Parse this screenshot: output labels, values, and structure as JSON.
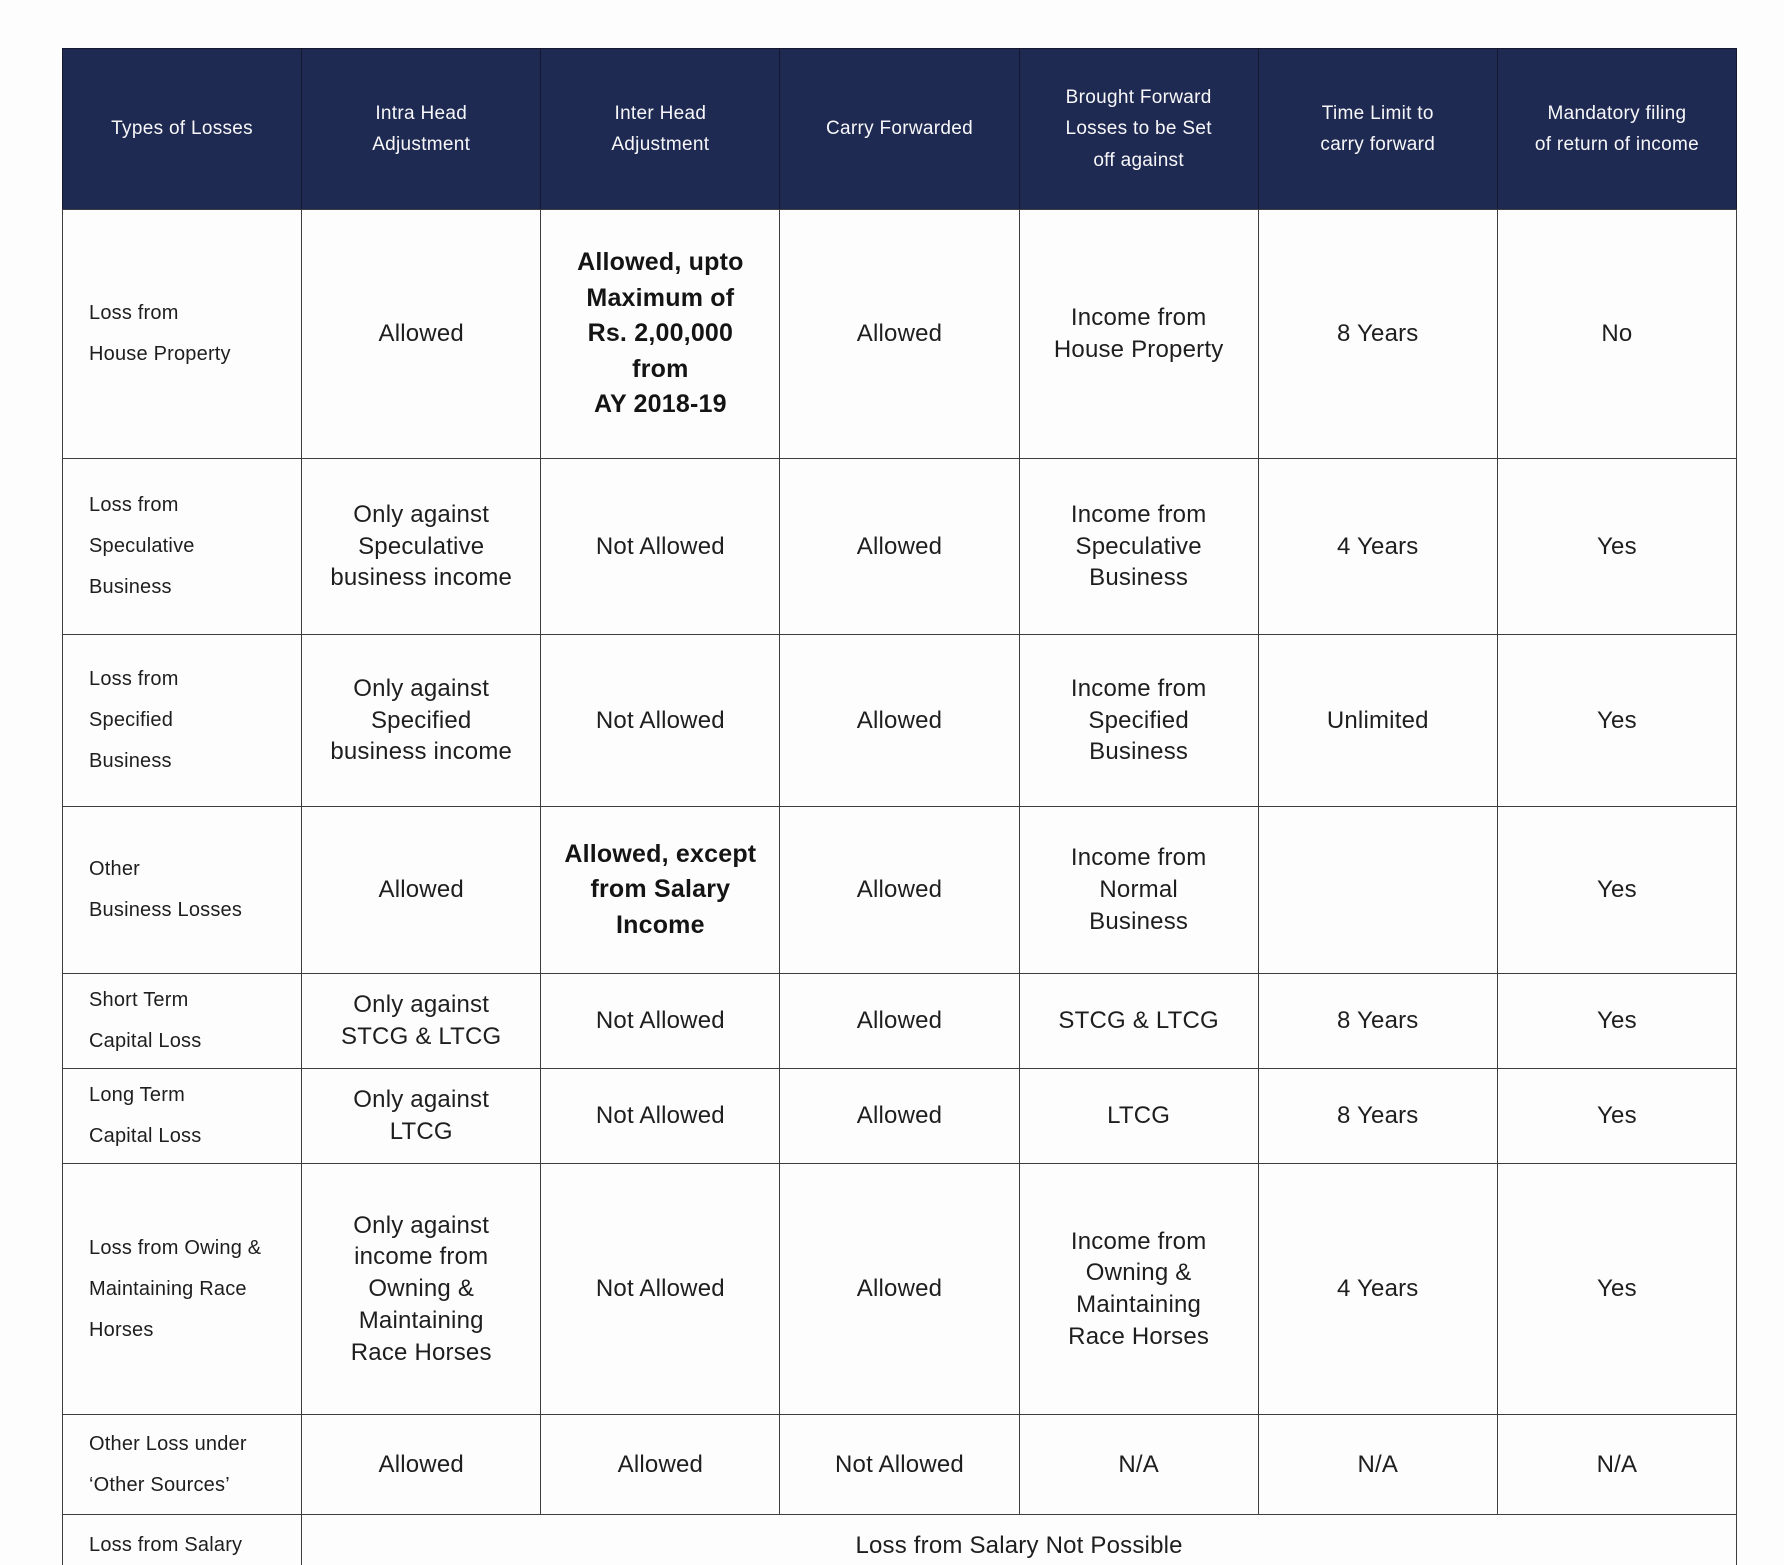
{
  "colors": {
    "header_bg": "#1f2a52",
    "header_text": "#f7f7f9",
    "body_text": "#1e1e1e",
    "border": "#3d3d3f",
    "page_bg": "#fdfdfe"
  },
  "table": {
    "header": {
      "columns": [
        "Types of Losses",
        "Intra Head\nAdjustment",
        "Inter Head\nAdjustment",
        "Carry Forwarded",
        "Brought Forward\nLosses to be Set\noff against",
        "Time Limit to\ncarry forward",
        "Mandatory filing\nof return of income"
      ]
    },
    "rows": [
      {
        "cells": [
          "Loss from\nHouse Property",
          "Allowed",
          {
            "text": "Allowed, upto\nMaximum of\nRs. 2,00,000\nfrom\nAY 2018-19",
            "bold": true
          },
          "Allowed",
          "Income from\nHouse Property",
          "8 Years",
          "No"
        ]
      },
      {
        "cells": [
          "Loss from\nSpeculative\nBusiness",
          "Only against\nSpeculative\nbusiness income",
          "Not Allowed",
          "Allowed",
          "Income from\nSpeculative\nBusiness",
          "4 Years",
          "Yes"
        ]
      },
      {
        "cells": [
          "Loss from\nSpecified\nBusiness",
          "Only against\nSpecified\nbusiness income",
          "Not Allowed",
          "Allowed",
          "Income from\nSpecified\nBusiness",
          "Unlimited",
          "Yes"
        ]
      },
      {
        "cells": [
          "Other\nBusiness Losses",
          "Allowed",
          {
            "text": "Allowed, except\nfrom Salary\nIncome",
            "bold": true
          },
          "Allowed",
          "Income from\nNormal\nBusiness",
          "",
          "Yes"
        ]
      },
      {
        "cells": [
          "Short Term\nCapital Loss",
          "Only against\nSTCG & LTCG",
          "Not Allowed",
          "Allowed",
          "STCG & LTCG",
          "8 Years",
          "Yes"
        ]
      },
      {
        "cells": [
          "Long Term\nCapital Loss",
          "Only against\nLTCG",
          "Not Allowed",
          "Allowed",
          "LTCG",
          "8 Years",
          "Yes"
        ]
      },
      {
        "cells": [
          "Loss from Owing &\nMaintaining Race\nHorses",
          "Only against\nincome from\nOwning &\nMaintaining\nRace Horses",
          "Not Allowed",
          "Allowed",
          "Income from\nOwning &\nMaintaining\nRace Horses",
          "4 Years",
          "Yes"
        ]
      },
      {
        "cells": [
          "Other Loss under\n‘Other Sources’",
          "Allowed",
          "Allowed",
          "Not Allowed",
          "N/A",
          "N/A",
          "N/A"
        ]
      },
      {
        "cells": [
          "Loss from Salary",
          {
            "text": "Loss from Salary Not Possible",
            "span": 6
          }
        ]
      }
    ]
  }
}
